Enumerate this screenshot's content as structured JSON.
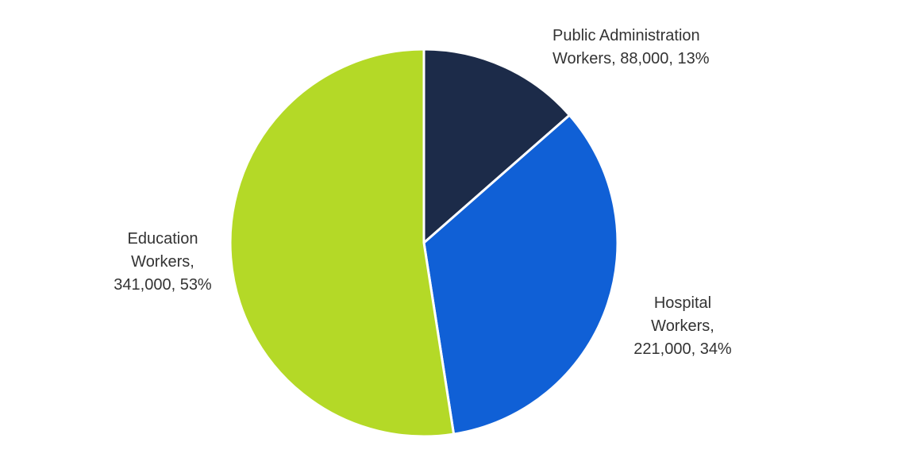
{
  "chart_data": {
    "type": "pie",
    "title": "",
    "slices": [
      {
        "label": "Public Administration Workers",
        "value": 88000,
        "percent": 13,
        "color": "#1c2b49",
        "label_lines": [
          "Public Administration",
          "Workers, 88,000, 13%"
        ]
      },
      {
        "label": "Hospital Workers",
        "value": 221000,
        "percent": 34,
        "color": "#1060d6",
        "label_lines": [
          "Hospital",
          "Workers,",
          "221,000, 34%"
        ]
      },
      {
        "label": "Education Workers",
        "value": 341000,
        "percent": 53,
        "color": "#b4d927",
        "label_lines": [
          "Education",
          "Workers,",
          "341,000, 53%"
        ]
      }
    ],
    "start_angle": "12 o'clock",
    "direction": "clockwise",
    "legend": "none"
  }
}
